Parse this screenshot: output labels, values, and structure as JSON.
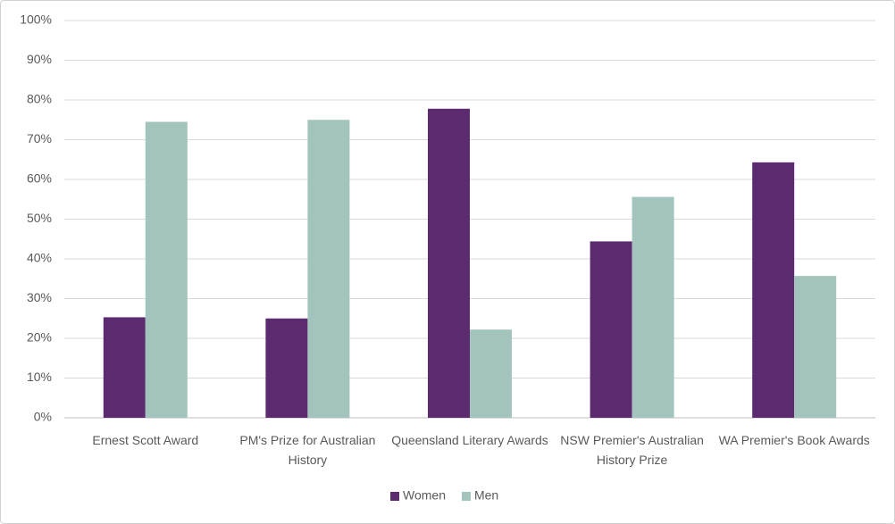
{
  "chart_data": {
    "type": "bar",
    "categories": [
      "Ernest Scott Award",
      "PM's Prize for Australian History",
      "Queensland Literary Awards",
      "NSW Premier's Australian History Prize",
      "WA Premier's Book Awards"
    ],
    "series": [
      {
        "name": "Women",
        "color": "#5c2a6e",
        "values": [
          25.3,
          25,
          77.8,
          44.4,
          64.3
        ]
      },
      {
        "name": "Men",
        "color": "#a3c4bc",
        "values": [
          74.5,
          75,
          22.2,
          55.6,
          35.7
        ]
      }
    ],
    "ylim": [
      0,
      100
    ],
    "yticks": [
      {
        "value": 0,
        "label": "0%"
      },
      {
        "value": 10,
        "label": "10%"
      },
      {
        "value": 20,
        "label": "20%"
      },
      {
        "value": 30,
        "label": "30%"
      },
      {
        "value": 40,
        "label": "40%"
      },
      {
        "value": 50,
        "label": "50%"
      },
      {
        "value": 60,
        "label": "60%"
      },
      {
        "value": 70,
        "label": "70%"
      },
      {
        "value": 80,
        "label": "80%"
      },
      {
        "value": 90,
        "label": "90%"
      },
      {
        "value": 100,
        "label": "100%"
      }
    ],
    "grid": true,
    "legend": "bottom"
  }
}
